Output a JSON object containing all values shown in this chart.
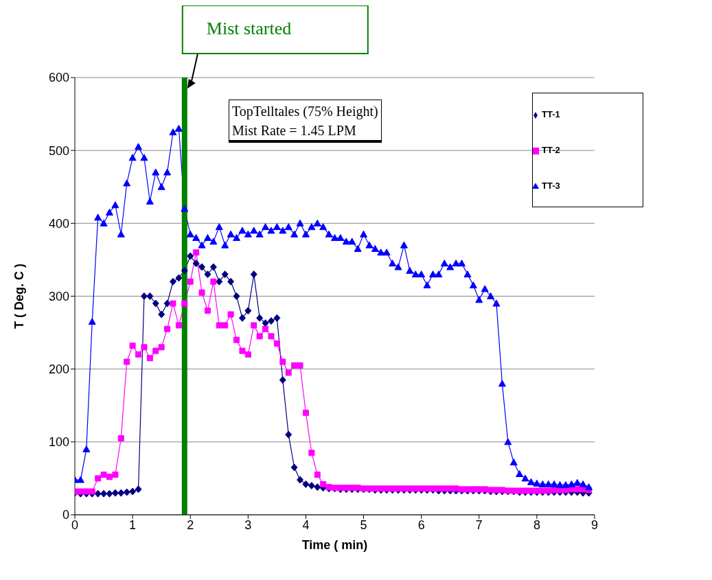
{
  "chart_data": {
    "type": "line",
    "xlabel": "Time ( min)",
    "ylabel": "T ( Deg. C )",
    "x": [
      0,
      0.1,
      0.2,
      0.3,
      0.4,
      0.5,
      0.6,
      0.7,
      0.8,
      0.9,
      1,
      1.1,
      1.2,
      1.3,
      1.4,
      1.5,
      1.6,
      1.7,
      1.8,
      1.9,
      2,
      2.1,
      2.2,
      2.3,
      2.4,
      2.5,
      2.6,
      2.7,
      2.8,
      2.9,
      3,
      3.1,
      3.2,
      3.3,
      3.4,
      3.5,
      3.6,
      3.7,
      3.8,
      3.9,
      4,
      4.1,
      4.2,
      4.3,
      4.4,
      4.5,
      4.6,
      4.7,
      4.8,
      4.9,
      5,
      5.1,
      5.2,
      5.3,
      5.4,
      5.5,
      5.6,
      5.7,
      5.8,
      5.9,
      6,
      6.1,
      6.2,
      6.3,
      6.4,
      6.5,
      6.6,
      6.7,
      6.8,
      6.9,
      7,
      7.1,
      7.2,
      7.3,
      7.4,
      7.5,
      7.6,
      7.7,
      7.8,
      7.9,
      8,
      8.1,
      8.2,
      8.3,
      8.4,
      8.5,
      8.6,
      8.7,
      8.8,
      8.9
    ],
    "series": [
      {
        "name": "TT-1",
        "color": "#000080",
        "marker": "diamond",
        "values": [
          30,
          29,
          29,
          29,
          29,
          29,
          29,
          30,
          30,
          31,
          32,
          35,
          300,
          300,
          290,
          275,
          290,
          320,
          325,
          335,
          355,
          345,
          340,
          330,
          340,
          320,
          330,
          320,
          300,
          270,
          280,
          330,
          270,
          263,
          266,
          270,
          185,
          110,
          65,
          48,
          42,
          40,
          38,
          37,
          36,
          36,
          35,
          35,
          35,
          35,
          35,
          35,
          34,
          34,
          34,
          34,
          34,
          34,
          34,
          34,
          34,
          34,
          34,
          33,
          33,
          33,
          33,
          33,
          33,
          33,
          33,
          33,
          32,
          32,
          32,
          32,
          32,
          31,
          31,
          31,
          31,
          31,
          31,
          31,
          31,
          31,
          31,
          31,
          30,
          30
        ]
      },
      {
        "name": "TT-2",
        "color": "#ff00ff",
        "marker": "square",
        "values": [
          32,
          32,
          32,
          32,
          50,
          55,
          52,
          55,
          105,
          210,
          232,
          220,
          230,
          215,
          225,
          230,
          255,
          290,
          260,
          290,
          320,
          360,
          305,
          280,
          320,
          260,
          260,
          275,
          240,
          225,
          220,
          260,
          245,
          255,
          245,
          235,
          210,
          195,
          205,
          205,
          140,
          85,
          55,
          42,
          38,
          37,
          37,
          37,
          37,
          37,
          36,
          36,
          36,
          36,
          36,
          36,
          36,
          36,
          36,
          36,
          36,
          36,
          36,
          36,
          36,
          36,
          36,
          35,
          35,
          35,
          35,
          35,
          34,
          34,
          34,
          33,
          33,
          33,
          33,
          33,
          33,
          33,
          33,
          34,
          34,
          34,
          35,
          35,
          35,
          34
        ]
      },
      {
        "name": "TT-3",
        "color": "#0000ff",
        "marker": "triangle",
        "values": [
          48,
          48,
          90,
          265,
          408,
          400,
          415,
          425,
          385,
          455,
          490,
          505,
          490,
          430,
          470,
          450,
          470,
          525,
          530,
          420,
          385,
          380,
          370,
          380,
          375,
          395,
          370,
          385,
          380,
          390,
          385,
          390,
          385,
          395,
          390,
          395,
          390,
          395,
          385,
          400,
          385,
          395,
          400,
          395,
          385,
          380,
          380,
          375,
          375,
          365,
          385,
          370,
          365,
          360,
          360,
          345,
          340,
          370,
          335,
          330,
          330,
          315,
          330,
          330,
          345,
          340,
          345,
          345,
          330,
          315,
          295,
          310,
          300,
          290,
          180,
          100,
          72,
          56,
          50,
          45,
          43,
          42,
          42,
          42,
          41,
          41,
          42,
          44,
          42,
          38
        ]
      }
    ],
    "xlim": [
      0,
      9
    ],
    "xticks": [
      0,
      1,
      2,
      3,
      4,
      5,
      6,
      7,
      8,
      9
    ],
    "ylim": [
      0,
      600
    ],
    "yticks": [
      0,
      100,
      200,
      300,
      400,
      500,
      600
    ],
    "grid": "y",
    "legend": "top right",
    "ref_lines": [
      {
        "axis": "x",
        "value": 1.9,
        "label": "Mist started",
        "color": "#008000"
      }
    ],
    "annotations": [
      "TopTelltales (75% Height)",
      "Mist Rate = 1.45 LPM"
    ]
  }
}
